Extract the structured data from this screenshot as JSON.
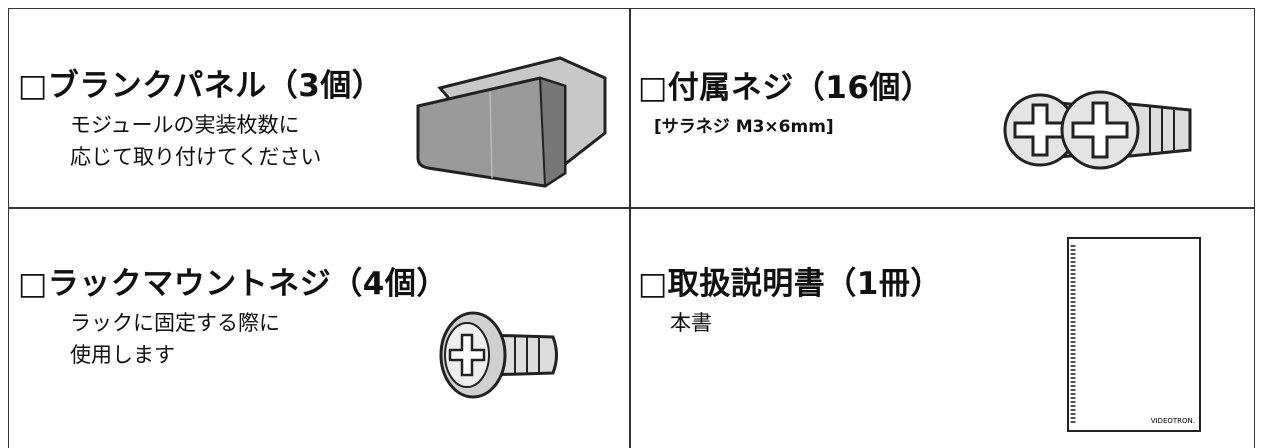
{
  "cells": [
    {
      "title": "□ブランクパネル（3個）",
      "lines": [
        "モジュールの実装枚数に",
        "応じて取り付けてください"
      ]
    },
    {
      "title": "□付属ネジ（16個）",
      "lines": [
        "[サラネジ M3×6mm]"
      ]
    },
    {
      "title": "□ラックマウントネジ（4個）",
      "lines": [
        "ラックに固定する際に",
        "使用します"
      ]
    },
    {
      "title": "□取扱説明書（1冊）",
      "lines": [
        "本書"
      ],
      "logo": "VIDEOTRON."
    }
  ]
}
